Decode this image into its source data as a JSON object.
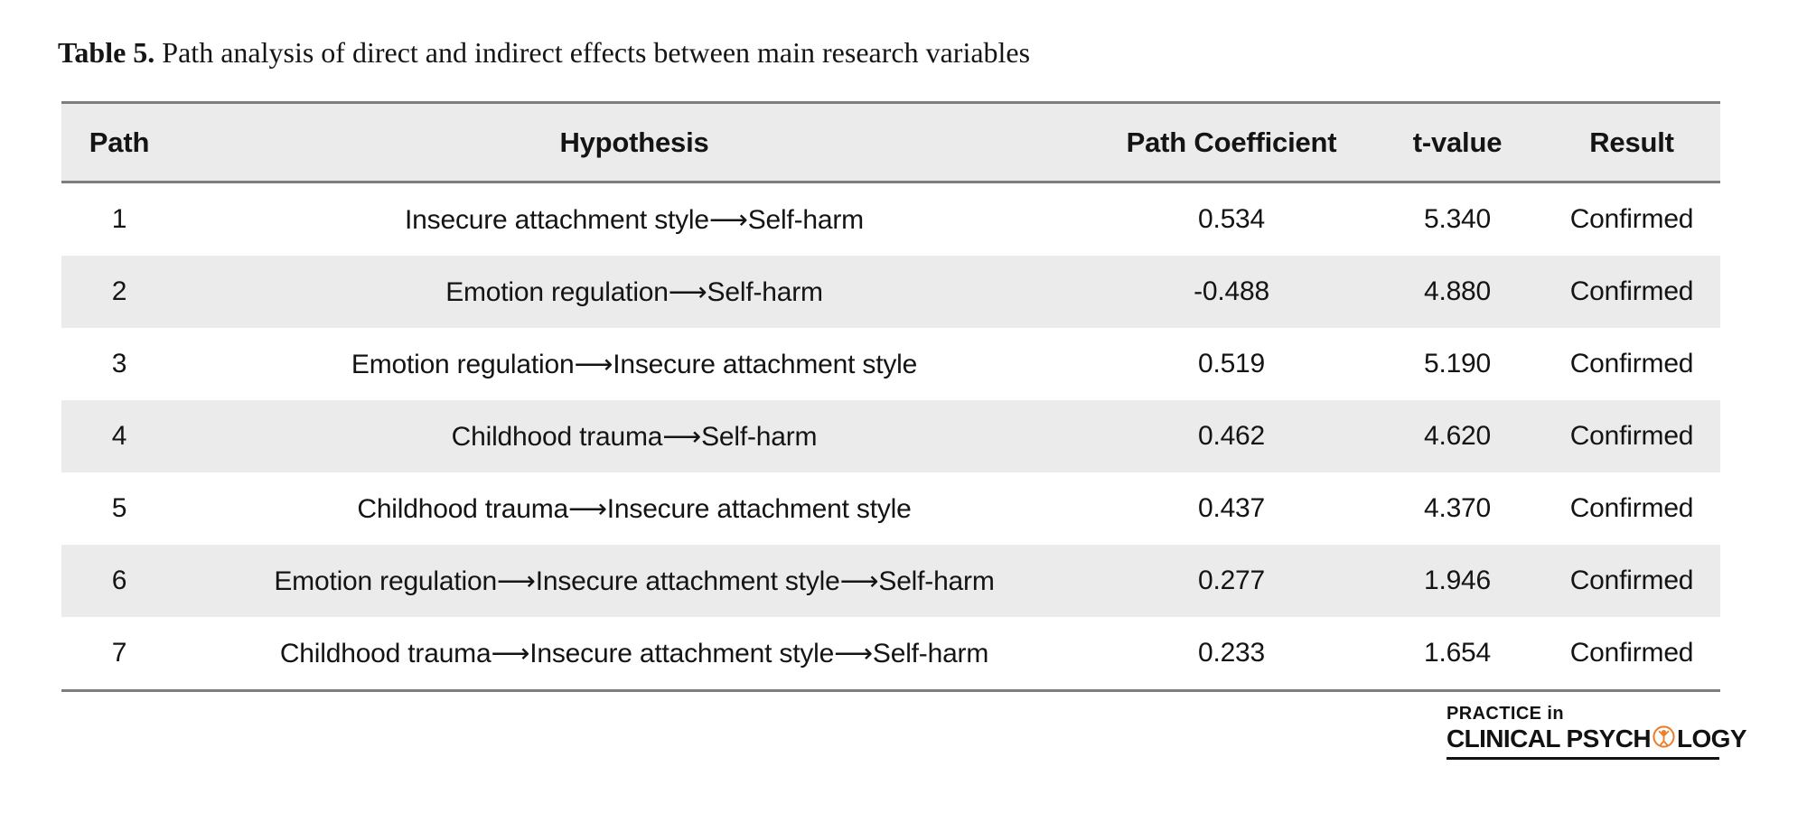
{
  "title": {
    "label": "Table 5.",
    "text": " Path analysis of direct and indirect effects between main research variables"
  },
  "table": {
    "columns": [
      "Path",
      "Hypothesis",
      "Path Coefficient",
      "t-value",
      "Result"
    ],
    "column_keys": [
      "path",
      "hypothesis",
      "path-coefficient",
      "t-value",
      "result"
    ],
    "rows": [
      {
        "path": "1",
        "hypothesis": "Insecure attachment style⟶Self-harm",
        "coefficient": "0.534",
        "t_value": "5.340",
        "result": "Confirmed"
      },
      {
        "path": "2",
        "hypothesis": "Emotion regulation⟶Self-harm",
        "coefficient": "-0.488",
        "t_value": "4.880",
        "result": "Confirmed"
      },
      {
        "path": "3",
        "hypothesis": "Emotion regulation⟶Insecure attachment style",
        "coefficient": "0.519",
        "t_value": "5.190",
        "result": "Confirmed"
      },
      {
        "path": "4",
        "hypothesis": "Childhood trauma⟶Self-harm",
        "coefficient": "0.462",
        "t_value": "4.620",
        "result": "Confirmed"
      },
      {
        "path": "5",
        "hypothesis": "Childhood trauma⟶Insecure attachment style",
        "coefficient": "0.437",
        "t_value": "4.370",
        "result": "Confirmed"
      },
      {
        "path": "6",
        "hypothesis": "Emotion regulation⟶Insecure attachment style⟶Self-harm",
        "coefficient": "0.277",
        "t_value": "1.946",
        "result": "Confirmed"
      },
      {
        "path": "7",
        "hypothesis": "Childhood trauma⟶Insecure attachment style⟶Self-harm",
        "coefficient": "0.233",
        "t_value": "1.654",
        "result": "Confirmed"
      }
    ]
  },
  "logo": {
    "line1": "PRACTICE in",
    "line2_pre": "CLINICAL PSYCH",
    "line2_post": "LOGY",
    "icon": "person-in-circle-icon",
    "orange": "#E8802F"
  },
  "colors": {
    "stripe": "#EBEBEB",
    "header_bg": "#EBEBEB",
    "rule": "#7E7E7E",
    "text": "#141414"
  }
}
